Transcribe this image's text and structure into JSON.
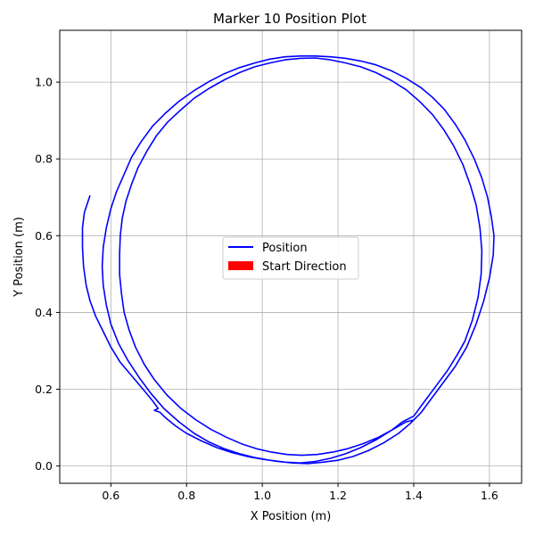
{
  "chart_data": {
    "type": "line",
    "title": "Marker 10 Position Plot",
    "xlabel": "X Position (m)",
    "ylabel": "Y Position (m)",
    "xlim": [
      0.465,
      1.685
    ],
    "ylim": [
      -0.045,
      1.135
    ],
    "xticks": [
      0.6,
      0.8,
      1.0,
      1.2,
      1.4,
      1.6
    ],
    "xtick_labels": [
      "0.6",
      "0.8",
      "1.0",
      "1.2",
      "1.4",
      "1.6"
    ],
    "yticks": [
      0.0,
      0.2,
      0.4,
      0.6,
      0.8,
      1.0
    ],
    "ytick_labels": [
      "0.0",
      "0.2",
      "0.4",
      "0.6",
      "0.8",
      "1.0"
    ],
    "grid": true,
    "legend": {
      "placement": "center",
      "entries": [
        {
          "label": "Position",
          "kind": "line",
          "color": "#0000ff"
        },
        {
          "label": "Start Direction",
          "kind": "patch",
          "color": "#ff0000"
        }
      ]
    },
    "series": [
      {
        "name": "Position",
        "color": "#0000ff",
        "points": [
          [
            0.545,
            0.705
          ],
          [
            0.54,
            0.69
          ],
          [
            0.53,
            0.66
          ],
          [
            0.525,
            0.62
          ],
          [
            0.525,
            0.57
          ],
          [
            0.528,
            0.52
          ],
          [
            0.535,
            0.47
          ],
          [
            0.545,
            0.43
          ],
          [
            0.56,
            0.39
          ],
          [
            0.58,
            0.35
          ],
          [
            0.6,
            0.31
          ],
          [
            0.625,
            0.27
          ],
          [
            0.655,
            0.235
          ],
          [
            0.685,
            0.2
          ],
          [
            0.71,
            0.17
          ],
          [
            0.725,
            0.15
          ],
          [
            0.715,
            0.145
          ],
          [
            0.73,
            0.14
          ],
          [
            0.745,
            0.125
          ],
          [
            0.77,
            0.105
          ],
          [
            0.8,
            0.085
          ],
          [
            0.84,
            0.065
          ],
          [
            0.88,
            0.048
          ],
          [
            0.92,
            0.035
          ],
          [
            0.96,
            0.025
          ],
          [
            1.0,
            0.018
          ],
          [
            1.04,
            0.012
          ],
          [
            1.08,
            0.008
          ],
          [
            1.12,
            0.006
          ],
          [
            1.16,
            0.01
          ],
          [
            1.2,
            0.015
          ],
          [
            1.24,
            0.025
          ],
          [
            1.28,
            0.04
          ],
          [
            1.32,
            0.06
          ],
          [
            1.36,
            0.085
          ],
          [
            1.39,
            0.11
          ],
          [
            1.42,
            0.14
          ],
          [
            1.45,
            0.18
          ],
          [
            1.48,
            0.22
          ],
          [
            1.51,
            0.26
          ],
          [
            1.54,
            0.31
          ],
          [
            1.565,
            0.37
          ],
          [
            1.585,
            0.43
          ],
          [
            1.6,
            0.49
          ],
          [
            1.61,
            0.55
          ],
          [
            1.612,
            0.6
          ],
          [
            1.605,
            0.65
          ],
          [
            1.595,
            0.7
          ],
          [
            1.58,
            0.75
          ],
          [
            1.56,
            0.8
          ],
          [
            1.535,
            0.85
          ],
          [
            1.51,
            0.89
          ],
          [
            1.48,
            0.93
          ],
          [
            1.45,
            0.96
          ],
          [
            1.42,
            0.985
          ],
          [
            1.38,
            1.01
          ],
          [
            1.34,
            1.03
          ],
          [
            1.3,
            1.045
          ],
          [
            1.26,
            1.055
          ],
          [
            1.22,
            1.062
          ],
          [
            1.18,
            1.066
          ],
          [
            1.14,
            1.068
          ],
          [
            1.1,
            1.068
          ],
          [
            1.06,
            1.066
          ],
          [
            1.02,
            1.06
          ],
          [
            0.98,
            1.05
          ],
          [
            0.94,
            1.038
          ],
          [
            0.9,
            1.022
          ],
          [
            0.86,
            1.002
          ],
          [
            0.82,
            0.978
          ],
          [
            0.78,
            0.95
          ],
          [
            0.745,
            0.92
          ],
          [
            0.71,
            0.885
          ],
          [
            0.68,
            0.845
          ],
          [
            0.655,
            0.805
          ],
          [
            0.635,
            0.76
          ],
          [
            0.615,
            0.715
          ],
          [
            0.6,
            0.67
          ],
          [
            0.588,
            0.62
          ],
          [
            0.58,
            0.57
          ],
          [
            0.577,
            0.52
          ],
          [
            0.58,
            0.47
          ],
          [
            0.588,
            0.42
          ],
          [
            0.6,
            0.37
          ],
          [
            0.62,
            0.32
          ],
          [
            0.645,
            0.275
          ],
          [
            0.675,
            0.23
          ],
          [
            0.705,
            0.19
          ],
          [
            0.74,
            0.15
          ],
          [
            0.78,
            0.115
          ],
          [
            0.82,
            0.085
          ],
          [
            0.86,
            0.062
          ],
          [
            0.9,
            0.045
          ],
          [
            0.94,
            0.032
          ],
          [
            0.98,
            0.022
          ],
          [
            1.02,
            0.015
          ],
          [
            1.06,
            0.01
          ],
          [
            1.1,
            0.008
          ],
          [
            1.14,
            0.012
          ],
          [
            1.18,
            0.02
          ],
          [
            1.22,
            0.032
          ],
          [
            1.26,
            0.048
          ],
          [
            1.3,
            0.068
          ],
          [
            1.34,
            0.092
          ],
          [
            1.37,
            0.115
          ],
          [
            1.4,
            0.13
          ],
          [
            1.43,
            0.17
          ],
          [
            1.46,
            0.21
          ],
          [
            1.49,
            0.25
          ],
          [
            1.515,
            0.29
          ],
          [
            1.535,
            0.325
          ],
          [
            1.555,
            0.38
          ],
          [
            1.57,
            0.44
          ],
          [
            1.578,
            0.5
          ],
          [
            1.58,
            0.56
          ],
          [
            1.575,
            0.62
          ],
          [
            1.565,
            0.68
          ],
          [
            1.55,
            0.73
          ],
          [
            1.53,
            0.785
          ],
          [
            1.505,
            0.835
          ],
          [
            1.48,
            0.875
          ],
          [
            1.45,
            0.915
          ],
          [
            1.415,
            0.95
          ],
          [
            1.38,
            0.98
          ],
          [
            1.34,
            1.005
          ],
          [
            1.3,
            1.025
          ],
          [
            1.26,
            1.04
          ],
          [
            1.22,
            1.05
          ],
          [
            1.18,
            1.058
          ],
          [
            1.14,
            1.063
          ],
          [
            1.1,
            1.062
          ],
          [
            1.06,
            1.058
          ],
          [
            1.02,
            1.05
          ],
          [
            0.98,
            1.04
          ],
          [
            0.94,
            1.025
          ],
          [
            0.9,
            1.006
          ],
          [
            0.86,
            0.984
          ],
          [
            0.82,
            0.958
          ],
          [
            0.785,
            0.928
          ],
          [
            0.75,
            0.896
          ],
          [
            0.72,
            0.86
          ],
          [
            0.695,
            0.82
          ],
          [
            0.672,
            0.778
          ],
          [
            0.655,
            0.735
          ],
          [
            0.64,
            0.69
          ],
          [
            0.63,
            0.645
          ],
          [
            0.625,
            0.6
          ],
          [
            0.623,
            0.55
          ],
          [
            0.623,
            0.5
          ],
          [
            0.628,
            0.45
          ],
          [
            0.635,
            0.4
          ],
          [
            0.648,
            0.355
          ],
          [
            0.665,
            0.31
          ],
          [
            0.688,
            0.265
          ],
          [
            0.715,
            0.225
          ],
          [
            0.748,
            0.185
          ],
          [
            0.785,
            0.15
          ],
          [
            0.825,
            0.12
          ],
          [
            0.865,
            0.095
          ],
          [
            0.905,
            0.075
          ],
          [
            0.945,
            0.058
          ],
          [
            0.985,
            0.045
          ],
          [
            1.025,
            0.036
          ],
          [
            1.065,
            0.03
          ],
          [
            1.105,
            0.028
          ],
          [
            1.145,
            0.03
          ],
          [
            1.185,
            0.036
          ],
          [
            1.225,
            0.045
          ],
          [
            1.265,
            0.058
          ],
          [
            1.305,
            0.074
          ],
          [
            1.345,
            0.095
          ],
          [
            1.38,
            0.115
          ],
          [
            1.4,
            0.12
          ]
        ]
      }
    ]
  }
}
